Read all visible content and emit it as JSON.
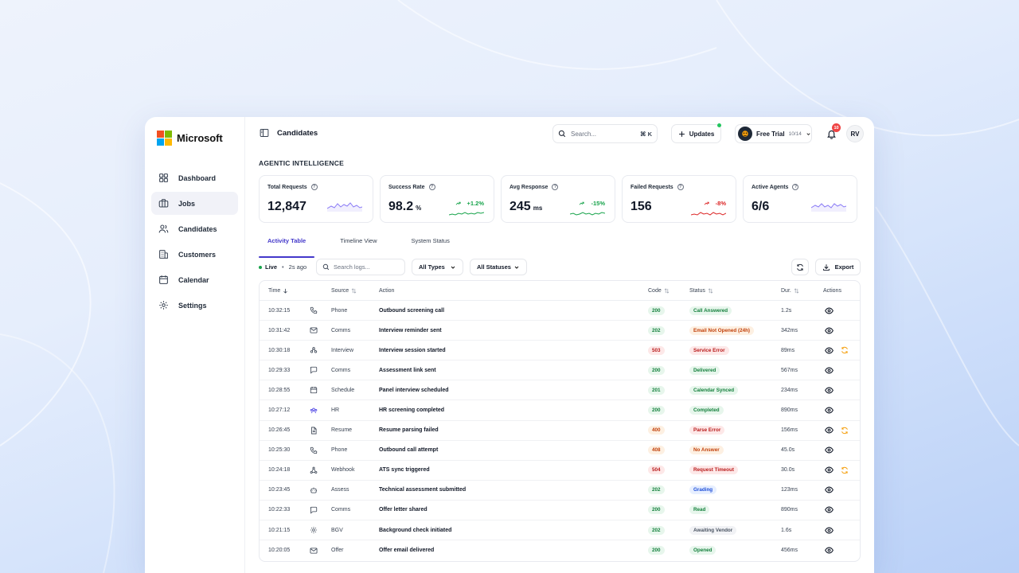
{
  "brand": {
    "name": "Microsoft",
    "colors": [
      "#f25022",
      "#7fba00",
      "#00a4ef",
      "#ffb900"
    ]
  },
  "sidebar": {
    "items": [
      {
        "label": "Dashboard",
        "icon": "grid-icon",
        "active": false
      },
      {
        "label": "Jobs",
        "icon": "briefcase-icon",
        "active": true
      },
      {
        "label": "Candidates",
        "icon": "users-icon",
        "active": false
      },
      {
        "label": "Customers",
        "icon": "building-icon",
        "active": false
      },
      {
        "label": "Calendar",
        "icon": "calendar-icon",
        "active": false
      },
      {
        "label": "Settings",
        "icon": "gear-icon",
        "active": false
      }
    ]
  },
  "header": {
    "title": "Candidates",
    "search_placeholder": "Search...",
    "search_shortcut": "⌘ K",
    "updates_label": "Updates",
    "trial_label": "Free Trial",
    "trial_count": "10/14",
    "notifications_count": "10",
    "avatar_initials": "RV"
  },
  "section_title": "AGENTIC INTELLIGENCE",
  "stats": [
    {
      "label": "Total Requests",
      "value": "12,847",
      "unit": "",
      "delta": "",
      "trend": "flat",
      "color": "#8b7cf6"
    },
    {
      "label": "Success Rate",
      "value": "98.2",
      "unit": "%",
      "delta": "+1.2%",
      "trend": "up",
      "color": "#16a34a"
    },
    {
      "label": "Avg Response",
      "value": "245",
      "unit": "ms",
      "delta": "-15%",
      "trend": "up",
      "color": "#16a34a"
    },
    {
      "label": "Failed Requests",
      "value": "156",
      "unit": "",
      "delta": "-8%",
      "trend": "down",
      "color": "#dc2626"
    },
    {
      "label": "Active Agents",
      "value": "6/6",
      "unit": "",
      "delta": "",
      "trend": "flat",
      "color": "#8b7cf6"
    }
  ],
  "tabs": [
    {
      "label": "Activity Table",
      "active": true
    },
    {
      "label": "Timeline View",
      "active": false
    },
    {
      "label": "System Status",
      "active": false
    }
  ],
  "toolbar": {
    "live_label": "Live",
    "live_separator": "•",
    "updated_ago": "2s ago",
    "logs_placeholder": "Search logs...",
    "type_filter": "All Types",
    "status_filter": "All Statuses",
    "export_label": "Export"
  },
  "table": {
    "headers": {
      "time": "Time",
      "source": "Source",
      "action": "Action",
      "code": "Code",
      "status": "Status",
      "duration": "Dur.",
      "actions": "Actions"
    },
    "rows": [
      {
        "time": "10:32:15",
        "icon": "phone-icon",
        "source": "Phone",
        "action": "Outbound screening call",
        "code": "200",
        "code_tone": "g",
        "status": "Call Answered",
        "status_tone": "g",
        "duration": "1.2s",
        "retry": false
      },
      {
        "time": "10:31:42",
        "icon": "mail-icon",
        "source": "Comms",
        "action": "Interview reminder sent",
        "code": "202",
        "code_tone": "g",
        "status": "Email Not Opened (24h)",
        "status_tone": "o",
        "duration": "342ms",
        "retry": false
      },
      {
        "time": "10:30:18",
        "icon": "interview-icon",
        "source": "Interview",
        "action": "Interview session started",
        "code": "503",
        "code_tone": "r",
        "status": "Service Error",
        "status_tone": "r",
        "duration": "89ms",
        "retry": true
      },
      {
        "time": "10:29:33",
        "icon": "chat-icon",
        "source": "Comms",
        "action": "Assessment link sent",
        "code": "200",
        "code_tone": "g",
        "status": "Delivered",
        "status_tone": "g",
        "duration": "567ms",
        "retry": false
      },
      {
        "time": "10:28:55",
        "icon": "calendar-icon",
        "source": "Schedule",
        "action": "Panel interview scheduled",
        "code": "201",
        "code_tone": "g",
        "status": "Calendar Synced",
        "status_tone": "g",
        "duration": "234ms",
        "retry": false
      },
      {
        "time": "10:27:12",
        "icon": "hr-icon",
        "source": "HR",
        "action": "HR screening completed",
        "code": "200",
        "code_tone": "g",
        "status": "Completed",
        "status_tone": "g",
        "duration": "890ms",
        "retry": false
      },
      {
        "time": "10:26:45",
        "icon": "document-icon",
        "source": "Resume",
        "action": "Resume parsing failed",
        "code": "400",
        "code_tone": "o",
        "status": "Parse Error",
        "status_tone": "r",
        "duration": "156ms",
        "retry": true
      },
      {
        "time": "10:25:30",
        "icon": "phone-icon",
        "source": "Phone",
        "action": "Outbound call attempt",
        "code": "408",
        "code_tone": "o",
        "status": "No Answer",
        "status_tone": "o",
        "duration": "45.0s",
        "retry": false
      },
      {
        "time": "10:24:18",
        "icon": "webhook-icon",
        "source": "Webhook",
        "action": "ATS sync triggered",
        "code": "504",
        "code_tone": "r",
        "status": "Request Timeout",
        "status_tone": "r",
        "duration": "30.0s",
        "retry": true
      },
      {
        "time": "10:23:45",
        "icon": "robot-icon",
        "source": "Assess",
        "action": "Technical assessment submitted",
        "code": "202",
        "code_tone": "g",
        "status": "Grading",
        "status_tone": "b",
        "duration": "123ms",
        "retry": false
      },
      {
        "time": "10:22:33",
        "icon": "chat-icon",
        "source": "Comms",
        "action": "Offer letter shared",
        "code": "200",
        "code_tone": "g",
        "status": "Read",
        "status_tone": "g",
        "duration": "890ms",
        "retry": false
      },
      {
        "time": "10:21:15",
        "icon": "gear-icon",
        "source": "BGV",
        "action": "Background check initiated",
        "code": "202",
        "code_tone": "g",
        "status": "Awaiting Vendor",
        "status_tone": "n",
        "duration": "1.6s",
        "retry": false
      },
      {
        "time": "10:20:05",
        "icon": "mail-icon",
        "source": "Offer",
        "action": "Offer email delivered",
        "code": "200",
        "code_tone": "g",
        "status": "Opened",
        "status_tone": "g",
        "duration": "456ms",
        "retry": false
      }
    ]
  }
}
